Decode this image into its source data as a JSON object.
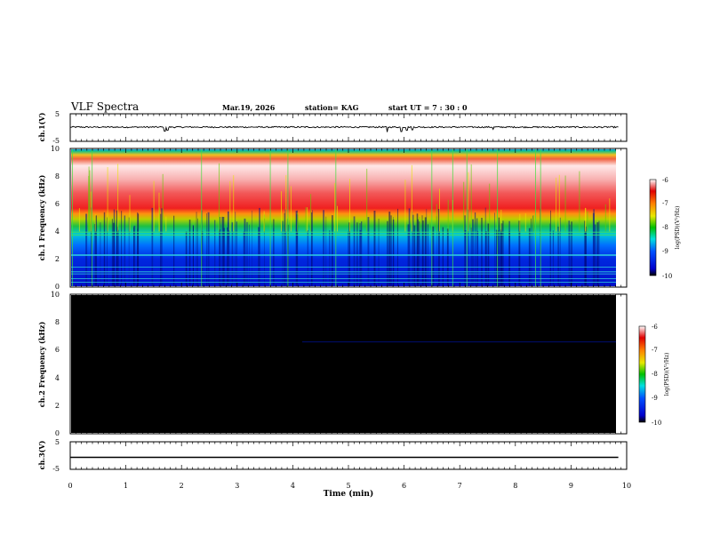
{
  "header": {
    "title": "VLF Spectra",
    "date": "Mar.19, 2026",
    "station": "station= KAG",
    "start": "start  UT =   7 : 30 : 0"
  },
  "chart_data": [
    {
      "type": "line",
      "panel": "ch1-waveform",
      "ylabel": "ch.1(V)",
      "ylim": [
        -5,
        5
      ],
      "yticks": [
        "5",
        "-5"
      ],
      "x": [
        0,
        1.7,
        1.75,
        5.7,
        5.95,
        6.05,
        6.15,
        7.6,
        9.85
      ],
      "values": [
        0,
        -1.5,
        -1.2,
        -1.8,
        -1.6,
        -1.2,
        -1.0,
        -0.8,
        0
      ],
      "baseline": 0
    },
    {
      "type": "heatmap",
      "panel": "ch1-spectrogram",
      "ylabel": "ch.1 Frequency (kHz)",
      "ylim": [
        0,
        10
      ],
      "yticks": [
        "0",
        "2",
        "4",
        "6",
        "8",
        "10"
      ],
      "x_range_min": [
        0,
        9.85
      ],
      "colorbar": {
        "label": "log(PSD)(V²/Hz)",
        "range": [
          -10,
          -6
        ],
        "ticks": [
          "-6",
          "-7",
          "-8",
          "-9",
          "-10"
        ]
      },
      "bands": [
        {
          "from_khz": 0,
          "to_khz": 2,
          "level": -9.5
        },
        {
          "from_khz": 2,
          "to_khz": 4,
          "level": -9.0
        },
        {
          "from_khz": 4,
          "to_khz": 5,
          "level": -8.2
        },
        {
          "from_khz": 5,
          "to_khz": 9.5,
          "level": -6.8
        },
        {
          "from_khz": 9.5,
          "to_khz": 10,
          "level": -8.3
        }
      ],
      "lines_khz": [
        0.3,
        0.55,
        0.9,
        1.05,
        1.4,
        2.25,
        2.3,
        3.75,
        3.95
      ]
    },
    {
      "type": "heatmap",
      "panel": "ch2-spectrogram",
      "ylabel": "ch.2 Frequency (kHz)",
      "ylim": [
        0,
        10
      ],
      "yticks": [
        "0",
        "2",
        "4",
        "6",
        "8",
        "10"
      ],
      "colorbar": {
        "label": "log(PSD)(V²/Hz)",
        "range": [
          -10,
          -6
        ],
        "ticks": [
          "-6",
          "-7",
          "-8",
          "-9",
          "-10"
        ]
      },
      "bands": [
        {
          "from_khz": 0,
          "to_khz": 10,
          "level": "no-data"
        }
      ],
      "lines_khz": [
        6.6
      ]
    },
    {
      "type": "line",
      "panel": "ch3-waveform",
      "ylabel": "ch.3(V)",
      "ylim": [
        -5,
        5
      ],
      "yticks": [
        "5",
        "-5"
      ],
      "x": [
        0,
        9.85
      ],
      "values": [
        -0.8,
        -0.8
      ]
    }
  ],
  "xaxis": {
    "label": "Time (min)",
    "range": [
      0,
      10
    ],
    "ticks": [
      "0",
      "1",
      "2",
      "3",
      "4",
      "5",
      "6",
      "7",
      "8",
      "9",
      "10"
    ]
  }
}
